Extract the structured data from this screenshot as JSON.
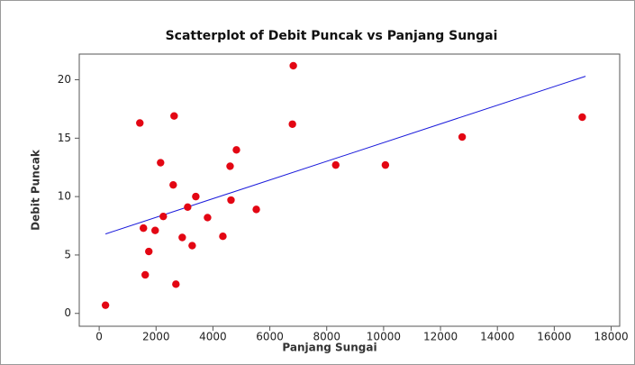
{
  "chart_data": {
    "type": "scatter",
    "title": "Scatterplot of Debit Puncak vs Panjang Sungai",
    "x_label": "Panjang Sungai",
    "y_label": "Debit Puncak",
    "color": "#e30613",
    "x": [
      222,
      1430,
      1556,
      1619,
      1746,
      1968,
      2159,
      2254,
      2635,
      2603,
      2698,
      2921,
      3111,
      3270,
      3397,
      3810,
      4349,
      4603,
      4635,
      4825,
      5524,
      6825,
      6794,
      8317,
      10063,
      12762,
      16984
    ],
    "values": [
      0.7,
      16.3,
      7.3,
      3.3,
      5.3,
      7.1,
      12.9,
      8.3,
      16.9,
      11.0,
      2.5,
      6.5,
      9.1,
      5.8,
      10.0,
      8.2,
      6.6,
      12.6,
      9.7,
      14.0,
      8.9,
      21.2,
      16.2,
      12.7,
      12.7,
      15.1,
      16.8
    ],
    "fit_line": {
      "color": "#1a1adb",
      "x": [
        222,
        17100
      ],
      "values": [
        6.8,
        20.3
      ]
    },
    "xlim": [
      -700,
      18300
    ],
    "ylim": [
      -1.1,
      22.2
    ],
    "xticks": [
      0,
      2000,
      4000,
      6000,
      8000,
      10000,
      12000,
      14000,
      16000,
      18000
    ],
    "yticks": [
      0,
      5,
      10,
      15,
      20
    ]
  }
}
